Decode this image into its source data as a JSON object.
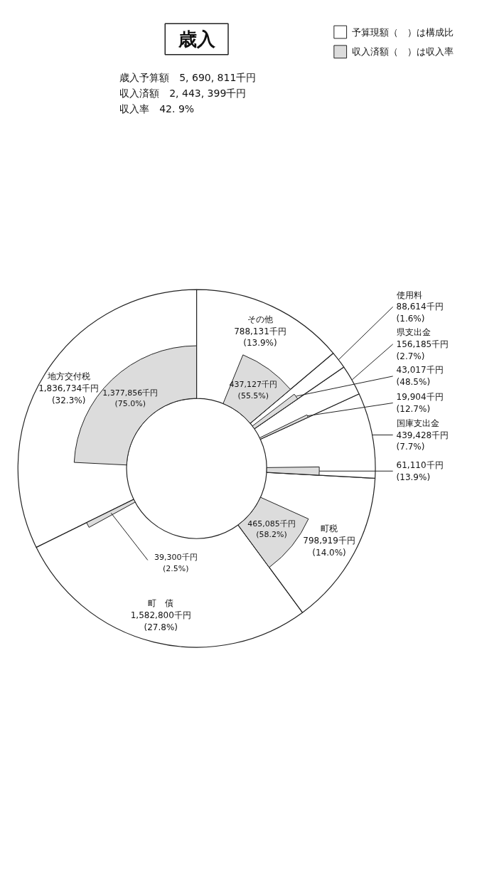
{
  "chart_data": {
    "type": "donut",
    "title": "歳入",
    "categories": [
      "地方交付税",
      "町　債",
      "町税",
      "国庫支出金",
      "県支出金",
      "使用料",
      "その他"
    ],
    "series": [
      {
        "name": "予算現額（　）は構成比",
        "color": "#ffffff",
        "values": [
          1836734,
          1582800,
          798919,
          439428,
          156185,
          88614,
          788131
        ],
        "value_labels": [
          "1,836,734千円\n(32.3%)",
          "1,582,800千円\n(27.8%)",
          "798,919千円\n(14.0%)",
          "439,428千円\n(7.7%)",
          "156,185千円\n(2.7%)",
          "88,614千円\n(1.6%)",
          "788,131千円\n(13.9%)"
        ]
      },
      {
        "name": "収入済額（　）は収入率",
        "color": "#dcdcdc",
        "values": [
          1377856,
          39300,
          465085,
          61110,
          19904,
          43017,
          437127
        ],
        "value_labels": [
          "1,377,856千円\n(75.0%)",
          "39,300千円\n(2.5%)",
          "465,085千円\n(58.2%)",
          "61,110千円\n(13.9%)",
          "19,904千円\n(12.7%)",
          "43,017千円\n(48.5%)",
          "437,127千円\n(55.5%)"
        ]
      }
    ],
    "annotations": [
      "歳入予算額　5, 690, 811千円",
      "収入済額　2, 443, 399千円",
      "収入率　42. 9%"
    ],
    "legend": "top right"
  }
}
